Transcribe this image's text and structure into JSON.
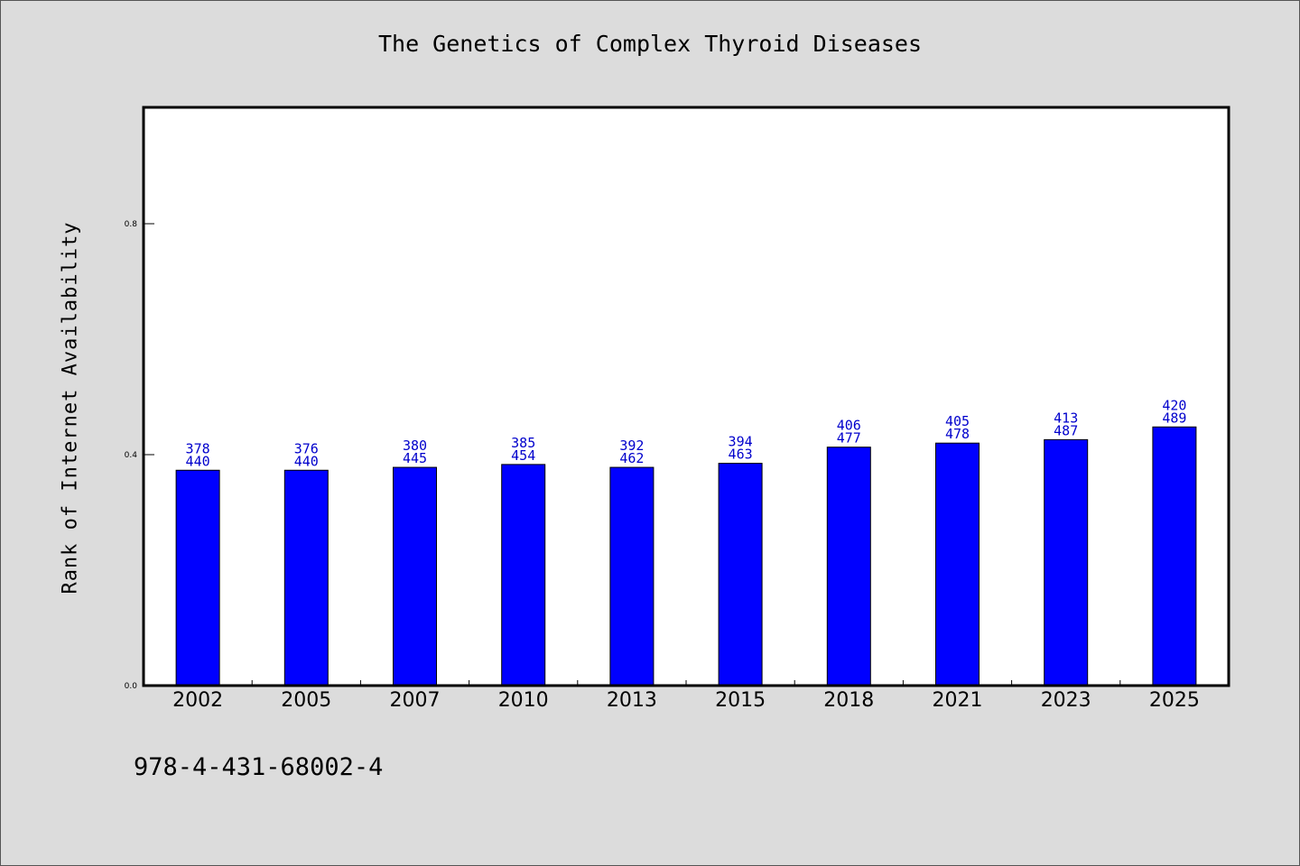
{
  "chart_data": {
    "type": "bar",
    "title": "The Genetics of Complex Thyroid Diseases",
    "xlabel": "",
    "ylabel": "Rank of Internet Availability",
    "ylim": [
      0,
      1.0
    ],
    "yticks": [
      "0.0",
      "0.4",
      "0.8"
    ],
    "ytick_values": [
      0.0,
      0.4,
      0.8
    ],
    "categories": [
      "2002",
      "2005",
      "2007",
      "2010",
      "2013",
      "2015",
      "2018",
      "2021",
      "2023",
      "2025"
    ],
    "values": [
      0.373,
      0.373,
      0.378,
      0.383,
      0.378,
      0.385,
      0.413,
      0.42,
      0.426,
      0.448
    ],
    "label_top": [
      "378",
      "376",
      "380",
      "385",
      "392",
      "394",
      "406",
      "405",
      "413",
      "420"
    ],
    "label_bottom": [
      "440",
      "440",
      "445",
      "454",
      "462",
      "463",
      "477",
      "478",
      "487",
      "489"
    ],
    "bar_color": "#0000ff",
    "label_color": "#0000cc",
    "grid": false,
    "legend": "none"
  },
  "footer": {
    "code": "978-4-431-68002-4"
  }
}
